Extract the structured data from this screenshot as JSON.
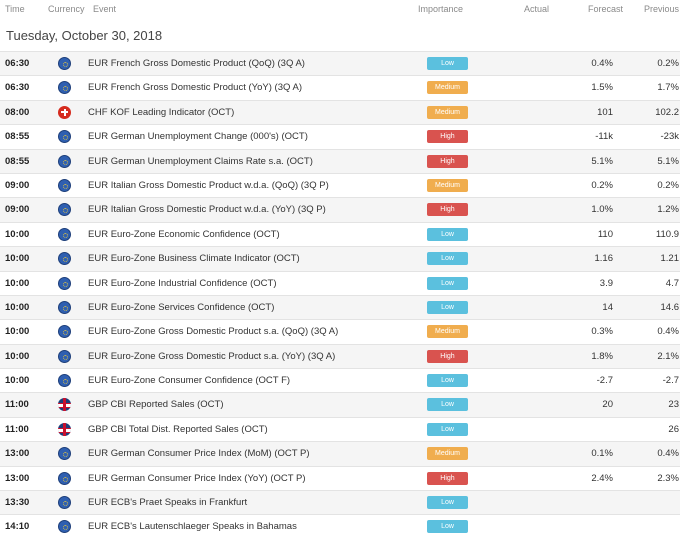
{
  "header": {
    "time": "Time",
    "currency": "Currency",
    "event": "Event",
    "importance": "Importance",
    "actual": "Actual",
    "forecast": "Forecast",
    "previous": "Previous"
  },
  "date_label": "Tuesday, October 30, 2018",
  "colors": {
    "low": "#5bc0de",
    "medium": "#f0ad4e",
    "high": "#d9534f"
  },
  "rows": [
    {
      "time": "06:30",
      "flag": "eu",
      "event": "EUR French Gross Domestic Product (QoQ) (3Q A)",
      "importance": "Low",
      "forecast": "0.4%",
      "previous": "0.2%"
    },
    {
      "time": "06:30",
      "flag": "eu",
      "event": "EUR French Gross Domestic Product (YoY) (3Q A)",
      "importance": "Medium",
      "forecast": "1.5%",
      "previous": "1.7%"
    },
    {
      "time": "08:00",
      "flag": "ch",
      "event": "CHF KOF Leading Indicator (OCT)",
      "importance": "Medium",
      "forecast": "101",
      "previous": "102.2"
    },
    {
      "time": "08:55",
      "flag": "eu",
      "event": "EUR German Unemployment Change (000's) (OCT)",
      "importance": "High",
      "forecast": "-11k",
      "previous": "-23k"
    },
    {
      "time": "08:55",
      "flag": "eu",
      "event": "EUR German Unemployment Claims Rate s.a. (OCT)",
      "importance": "High",
      "forecast": "5.1%",
      "previous": "5.1%"
    },
    {
      "time": "09:00",
      "flag": "eu",
      "event": "EUR Italian Gross Domestic Product w.d.a. (QoQ) (3Q P)",
      "importance": "Medium",
      "forecast": "0.2%",
      "previous": "0.2%"
    },
    {
      "time": "09:00",
      "flag": "eu",
      "event": "EUR Italian Gross Domestic Product w.d.a. (YoY) (3Q P)",
      "importance": "High",
      "forecast": "1.0%",
      "previous": "1.2%"
    },
    {
      "time": "10:00",
      "flag": "eu",
      "event": "EUR Euro-Zone Economic Confidence (OCT)",
      "importance": "Low",
      "forecast": "110",
      "previous": "110.9"
    },
    {
      "time": "10:00",
      "flag": "eu",
      "event": "EUR Euro-Zone Business Climate Indicator (OCT)",
      "importance": "Low",
      "forecast": "1.16",
      "previous": "1.21"
    },
    {
      "time": "10:00",
      "flag": "eu",
      "event": "EUR Euro-Zone Industrial Confidence (OCT)",
      "importance": "Low",
      "forecast": "3.9",
      "previous": "4.7"
    },
    {
      "time": "10:00",
      "flag": "eu",
      "event": "EUR Euro-Zone Services Confidence (OCT)",
      "importance": "Low",
      "forecast": "14",
      "previous": "14.6"
    },
    {
      "time": "10:00",
      "flag": "eu",
      "event": "EUR Euro-Zone Gross Domestic Product s.a. (QoQ) (3Q A)",
      "importance": "Medium",
      "forecast": "0.3%",
      "previous": "0.4%"
    },
    {
      "time": "10:00",
      "flag": "eu",
      "event": "EUR Euro-Zone Gross Domestic Product s.a. (YoY) (3Q A)",
      "importance": "High",
      "forecast": "1.8%",
      "previous": "2.1%"
    },
    {
      "time": "10:00",
      "flag": "eu",
      "event": "EUR Euro-Zone Consumer Confidence (OCT F)",
      "importance": "Low",
      "forecast": "-2.7",
      "previous": "-2.7"
    },
    {
      "time": "11:00",
      "flag": "gb",
      "event": "GBP CBI Reported Sales (OCT)",
      "importance": "Low",
      "forecast": "20",
      "previous": "23"
    },
    {
      "time": "11:00",
      "flag": "gb",
      "event": "GBP CBI Total Dist. Reported Sales (OCT)",
      "importance": "Low",
      "forecast": "",
      "previous": "26"
    },
    {
      "time": "13:00",
      "flag": "eu",
      "event": "EUR German Consumer Price Index (MoM) (OCT P)",
      "importance": "Medium",
      "forecast": "0.1%",
      "previous": "0.4%"
    },
    {
      "time": "13:00",
      "flag": "eu",
      "event": "EUR German Consumer Price Index (YoY) (OCT P)",
      "importance": "High",
      "forecast": "2.4%",
      "previous": "2.3%"
    },
    {
      "time": "13:30",
      "flag": "eu",
      "event": "EUR ECB's Praet Speaks in Frankfurt",
      "importance": "Low",
      "forecast": "",
      "previous": ""
    },
    {
      "time": "14:10",
      "flag": "eu",
      "event": "EUR ECB's Lautenschlaeger Speaks in Bahamas",
      "importance": "Low",
      "forecast": "",
      "previous": ""
    }
  ]
}
